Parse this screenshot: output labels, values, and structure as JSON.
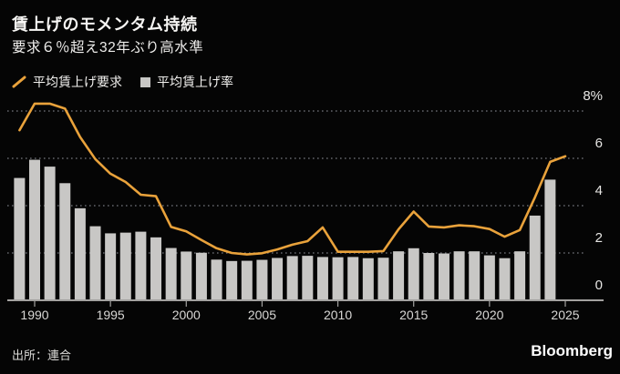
{
  "header": {
    "title": "賃上げのモメンタム持続",
    "subtitle": "要求６％超え32年ぶり高水準"
  },
  "legend": {
    "items": [
      {
        "label": "平均賃上げ要求",
        "marker": "line-slash-icon",
        "color": "#e9a23b"
      },
      {
        "label": "平均賃上げ率",
        "marker": "square-icon",
        "color": "#c8c7c5"
      }
    ]
  },
  "footer": {
    "source": "出所：連合",
    "brand": "Bloomberg"
  },
  "colors": {
    "background": "#050505",
    "accent_line": "#e9a23b",
    "bar_fill": "#c8c7c5",
    "grid": "#63656b",
    "axis": "#a3a2a0",
    "y_label": "#e6e5e3",
    "x_label": "#d8d7d5"
  },
  "chart_data": {
    "type": "bar+line",
    "title": "賃上げのモメンタム持続",
    "subtitle": "要求６％超え32年ぶり高水準",
    "x": [
      1989,
      1990,
      1991,
      1992,
      1993,
      1994,
      1995,
      1996,
      1997,
      1998,
      1999,
      2000,
      2001,
      2002,
      2003,
      2004,
      2005,
      2006,
      2007,
      2008,
      2009,
      2010,
      2011,
      2012,
      2013,
      2014,
      2015,
      2016,
      2017,
      2018,
      2019,
      2020,
      2021,
      2022,
      2023,
      2024,
      2025
    ],
    "series": [
      {
        "name": "平均賃上げ要求",
        "type": "line",
        "color": "#e9a23b",
        "values": [
          7.19,
          8.31,
          8.31,
          8.1,
          6.9,
          5.97,
          5.35,
          5.0,
          4.46,
          4.4,
          3.1,
          2.91,
          2.55,
          2.2,
          2.0,
          1.94,
          1.99,
          2.15,
          2.35,
          2.5,
          3.08,
          2.05,
          2.05,
          2.05,
          2.08,
          3.0,
          3.75,
          3.12,
          3.08,
          3.17,
          3.13,
          3.01,
          2.69,
          2.97,
          4.35,
          5.85,
          6.09
        ]
      },
      {
        "name": "平均賃上げ率",
        "type": "bar",
        "color": "#c8c7c5",
        "values": [
          5.17,
          5.94,
          5.65,
          4.95,
          3.89,
          3.13,
          2.83,
          2.86,
          2.9,
          2.66,
          2.21,
          2.06,
          2.01,
          1.72,
          1.66,
          1.67,
          1.71,
          1.79,
          1.87,
          1.88,
          1.83,
          1.82,
          1.83,
          1.78,
          1.8,
          2.07,
          2.2,
          2.0,
          1.98,
          2.07,
          2.07,
          1.9,
          1.78,
          2.07,
          3.58,
          5.1,
          null
        ]
      }
    ],
    "ylim": [
      0,
      8
    ],
    "yticks": [
      {
        "value": 0,
        "label": "0"
      },
      {
        "value": 2,
        "label": "2"
      },
      {
        "value": 4,
        "label": "4"
      },
      {
        "value": 6,
        "label": "6"
      },
      {
        "value": 8,
        "label": "8%"
      }
    ],
    "xticks": [
      1990,
      1995,
      2000,
      2005,
      2010,
      2015,
      2020,
      2025
    ],
    "grid": "horizontal-dotted",
    "legend_position": "top-left",
    "ylabel_side": "right"
  }
}
